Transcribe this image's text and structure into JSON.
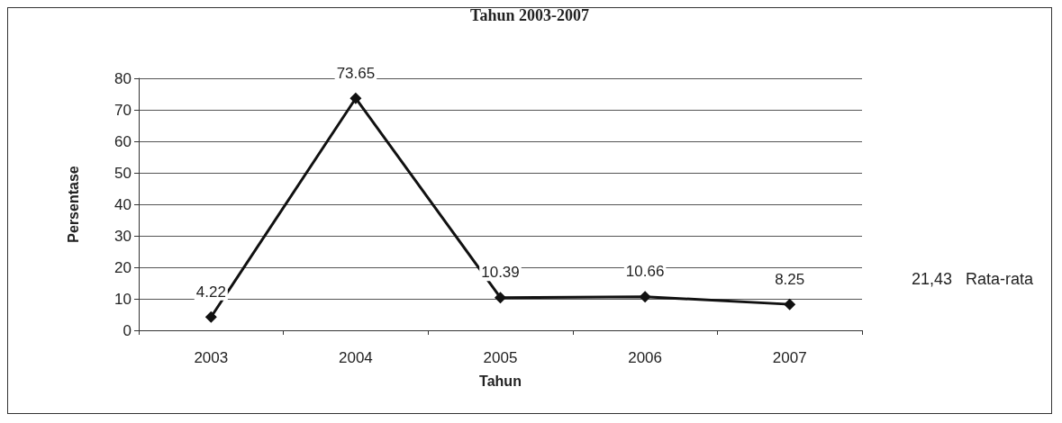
{
  "chart_data": {
    "type": "line",
    "title": "Tahun 2003-2007",
    "xlabel": "Tahun",
    "ylabel": "Persentase",
    "categories": [
      "2003",
      "2004",
      "2005",
      "2006",
      "2007"
    ],
    "series": [
      {
        "color": "#111111",
        "values": [
          4.22,
          73.65,
          10.39,
          10.66,
          8.25
        ]
      }
    ],
    "ylim": [
      0,
      80
    ],
    "yticks": [
      0,
      10,
      20,
      30,
      40,
      50,
      60,
      70,
      80
    ],
    "grid": "y",
    "marker": "diamond",
    "line_style": "solid",
    "data_labels": true,
    "annotations": [
      "21,43   Rata-rata"
    ]
  }
}
